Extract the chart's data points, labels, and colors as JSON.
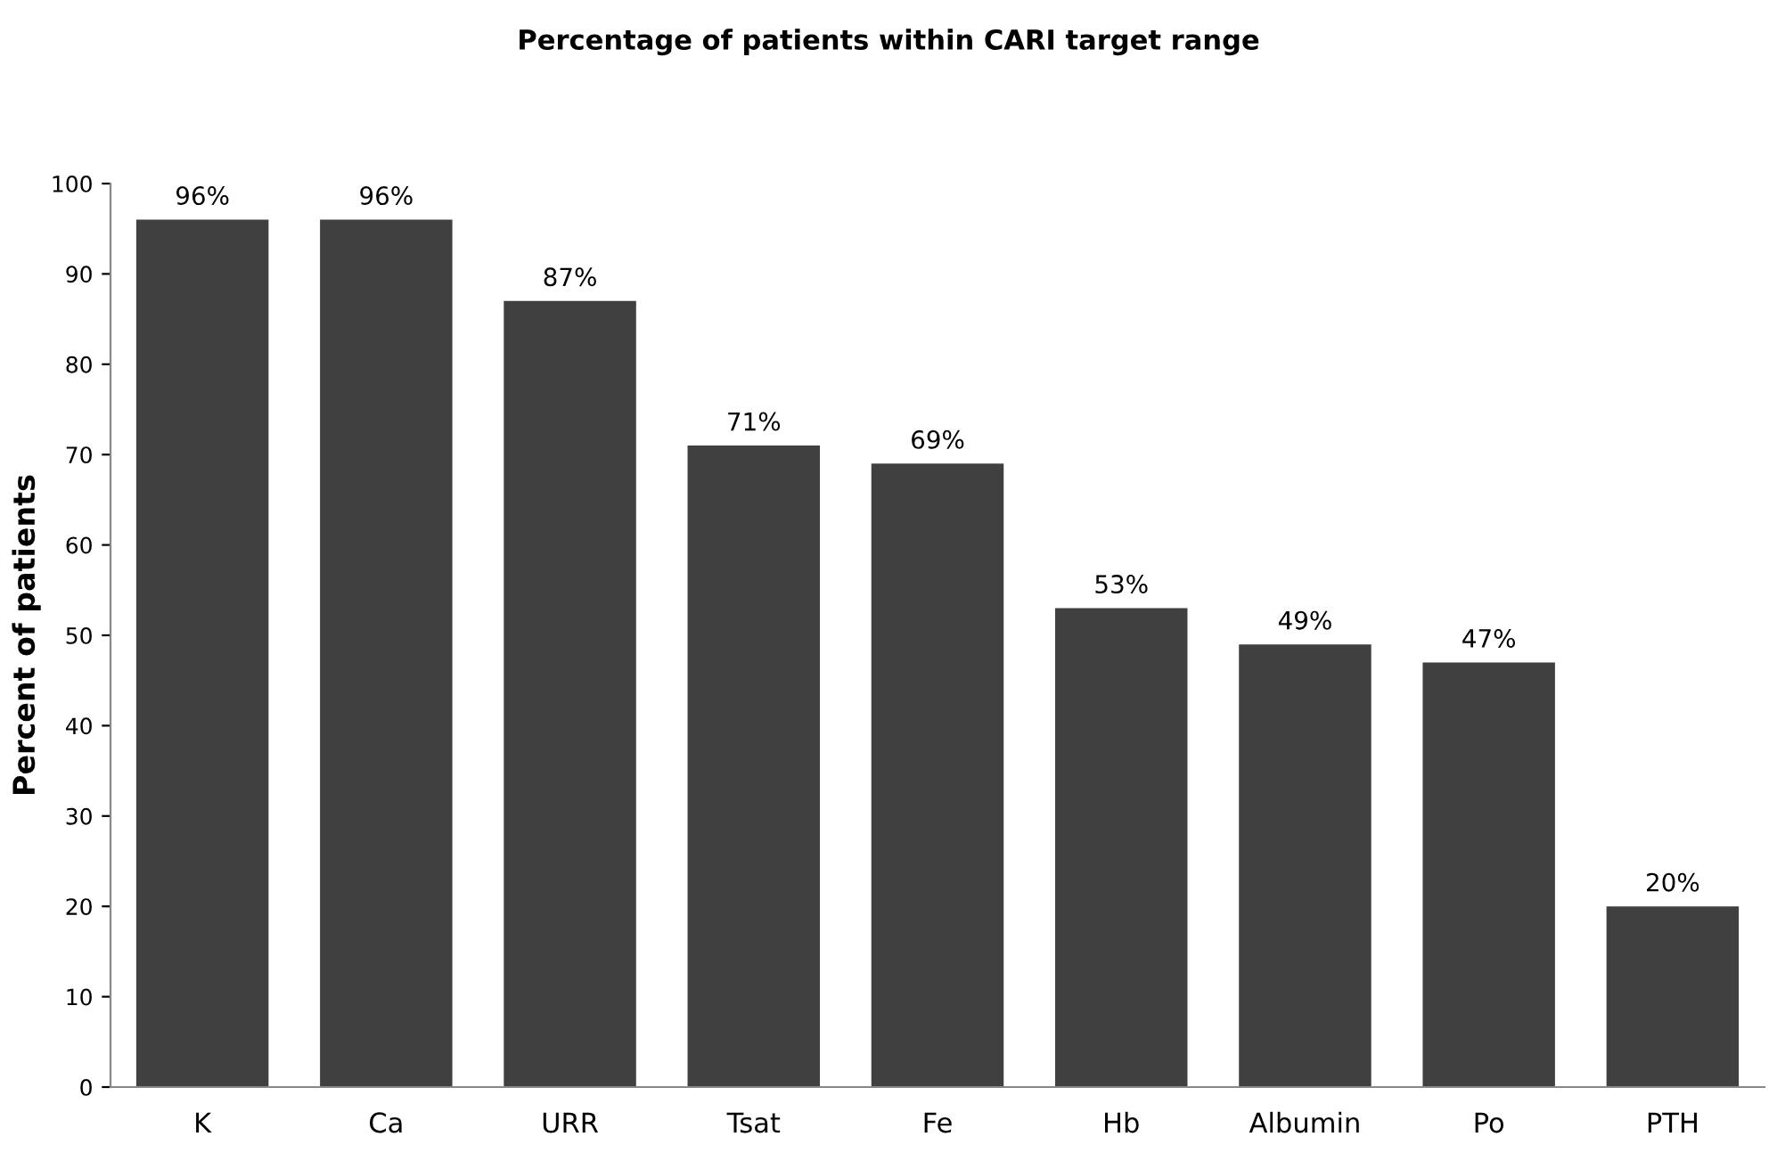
{
  "chart_data": {
    "type": "bar",
    "title": "Percentage of patients within CARI target range",
    "ylabel": "Percent of patients",
    "categories": [
      "K",
      "Ca",
      "URR",
      "Tsat",
      "Fe",
      "Hb",
      "Albumin",
      "Po",
      "PTH"
    ],
    "values": [
      96,
      96,
      87,
      71,
      69,
      53,
      49,
      47,
      20
    ],
    "value_labels": [
      "96%",
      "96%",
      "87%",
      "71%",
      "69%",
      "53%",
      "49%",
      "47%",
      "20%"
    ],
    "color": "#404040",
    "ylim": [
      0,
      100
    ],
    "yticks": [
      0,
      10,
      20,
      30,
      40,
      50,
      60,
      70,
      80,
      90,
      100
    ],
    "grid": false,
    "legend": false
  }
}
